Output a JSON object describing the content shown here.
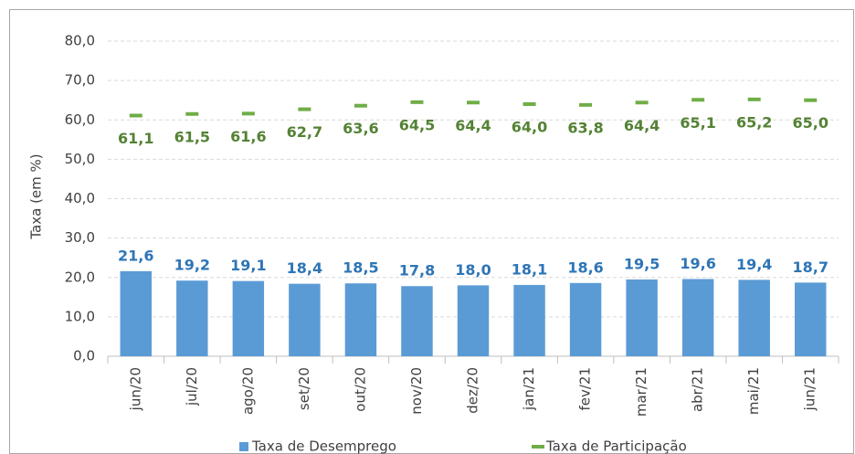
{
  "chart_data": {
    "type": "bar-marker",
    "y_label": "Taxa (em %)",
    "categories": [
      "jun/20",
      "jul/20",
      "ago/20",
      "set/20",
      "out/20",
      "nov/20",
      "dez/20",
      "jan/21",
      "fev/21",
      "mar/21",
      "abr/21",
      "mai/21",
      "jun/21"
    ],
    "series": [
      {
        "name": "Taxa de Desemprego",
        "type": "bar",
        "color": "#5b9bd5",
        "label_color": "#2e75b6",
        "values": [
          21.6,
          19.2,
          19.1,
          18.4,
          18.5,
          17.8,
          18.0,
          18.1,
          18.6,
          19.5,
          19.6,
          19.4,
          18.7
        ],
        "value_labels": [
          "21,6",
          "19,2",
          "19,1",
          "18,4",
          "18,5",
          "17,8",
          "18,0",
          "18,1",
          "18,6",
          "19,5",
          "19,6",
          "19,4",
          "18,7"
        ]
      },
      {
        "name": "Taxa de Participação",
        "type": "marker",
        "color": "#70ad47",
        "label_color": "#548235",
        "values": [
          61.1,
          61.5,
          61.6,
          62.7,
          63.6,
          64.5,
          64.4,
          64.0,
          63.8,
          64.4,
          65.1,
          65.2,
          65.0
        ],
        "value_labels": [
          "61,1",
          "61,5",
          "61,6",
          "62,7",
          "63,6",
          "64,5",
          "64,4",
          "64,0",
          "63,8",
          "64,4",
          "65,1",
          "65,2",
          "65,0"
        ]
      }
    ],
    "ylim": [
      0,
      80
    ],
    "yticks": [
      {
        "value": 0,
        "label": "0,0"
      },
      {
        "value": 10,
        "label": "10,0"
      },
      {
        "value": 20,
        "label": "20,0"
      },
      {
        "value": 30,
        "label": "30,0"
      },
      {
        "value": 40,
        "label": "40,0"
      },
      {
        "value": 50,
        "label": "50,0"
      },
      {
        "value": 60,
        "label": "60,0"
      },
      {
        "value": 70,
        "label": "70,0"
      },
      {
        "value": 80,
        "label": "80,0"
      }
    ],
    "grid": true
  }
}
